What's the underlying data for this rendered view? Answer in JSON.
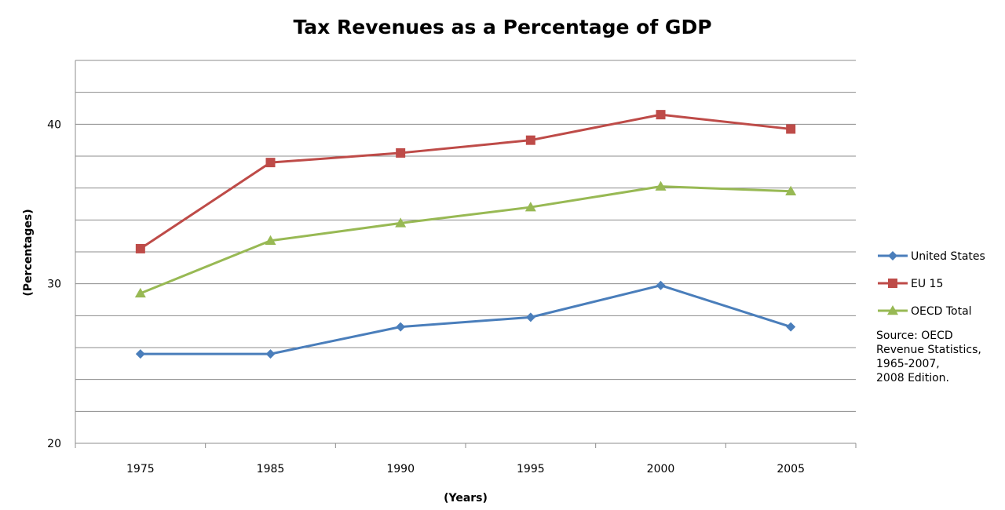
{
  "chart_data": {
    "type": "line",
    "title": "Tax Revenues as a Percentage of GDP",
    "xlabel": "(Years)",
    "ylabel": "(Percentages)",
    "categories": [
      "1975",
      "1985",
      "1990",
      "1995",
      "2000",
      "2005"
    ],
    "ylim": [
      20,
      44
    ],
    "yticks": [
      20,
      30,
      40
    ],
    "grid": true,
    "legend_position": "right",
    "series": [
      {
        "name": "United States",
        "values": [
          25.6,
          25.6,
          27.3,
          27.9,
          29.9,
          27.3
        ],
        "color": "#4a7ebb",
        "marker": "diamond"
      },
      {
        "name": "EU 15",
        "values": [
          32.2,
          37.6,
          38.2,
          39.0,
          40.6,
          39.7
        ],
        "color": "#be4b48",
        "marker": "square"
      },
      {
        "name": "OECD Total",
        "values": [
          29.4,
          32.7,
          33.8,
          34.8,
          36.1,
          35.8
        ],
        "color": "#98b954",
        "marker": "triangle"
      }
    ],
    "annotation": [
      "Source: OECD",
      "Revenue Statistics,",
      "1965-2007,",
      "2008 Edition."
    ]
  }
}
